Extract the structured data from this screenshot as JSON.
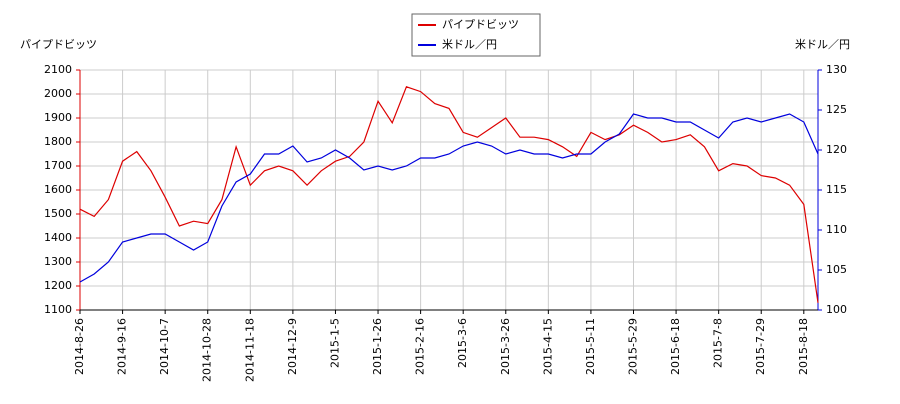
{
  "chart_data": {
    "type": "line",
    "y_label": "パイプドビッツ",
    "y2_label": "米ドル／円",
    "categories": [
      "2014-8-26",
      null,
      null,
      "2014-9-16",
      null,
      null,
      "2014-10-7",
      null,
      null,
      "2014-10-28",
      null,
      null,
      "2014-11-18",
      null,
      null,
      "2014-12-9",
      null,
      null,
      "2015-1-5",
      null,
      null,
      "2015-1-26",
      null,
      null,
      "2015-2-16",
      null,
      null,
      "2015-3-6",
      null,
      null,
      "2015-3-26",
      null,
      null,
      "2015-4-15",
      null,
      null,
      "2015-5-11",
      null,
      null,
      "2015-5-29",
      null,
      null,
      "2015-6-18",
      null,
      null,
      "2015-7-8",
      null,
      null,
      "2015-7-29",
      null,
      null,
      "2015-8-18",
      null
    ],
    "series": [
      {
        "name": "パイプドビッツ",
        "color": "#dd0000",
        "axis": "y",
        "values": [
          1520,
          1490,
          1560,
          1720,
          1760,
          1680,
          1570,
          1450,
          1470,
          1460,
          1560,
          1780,
          1620,
          1680,
          1700,
          1680,
          1620,
          1680,
          1720,
          1740,
          1800,
          1970,
          1880,
          2030,
          2010,
          1960,
          1940,
          1840,
          1820,
          1860,
          1900,
          1820,
          1820,
          1810,
          1780,
          1740,
          1840,
          1810,
          1830,
          1870,
          1840,
          1800,
          1810,
          1830,
          1780,
          1680,
          1710,
          1700,
          1660,
          1650,
          1620,
          1540,
          1130
        ]
      },
      {
        "name": "米ドル／円",
        "color": "#0000dd",
        "axis": "y2",
        "values": [
          103.5,
          104.5,
          106,
          108.5,
          109,
          109.5,
          109.5,
          108.5,
          107.5,
          108.5,
          113,
          116,
          117,
          119.5,
          119.5,
          120.5,
          118.5,
          119,
          120,
          119,
          117.5,
          118,
          117.5,
          118,
          119,
          119,
          119.5,
          120.5,
          121,
          120.5,
          119.5,
          120,
          119.5,
          119.5,
          119,
          119.5,
          119.5,
          121,
          122,
          124.5,
          124,
          124,
          123.5,
          123.5,
          122.5,
          121.5,
          123.5,
          124,
          123.5,
          124,
          124.5,
          123.5,
          119.5
        ]
      }
    ],
    "ylim": [
      1100,
      2100
    ],
    "yticks": [
      1100,
      1200,
      1300,
      1400,
      1500,
      1600,
      1700,
      1800,
      1900,
      2000,
      2100
    ],
    "y2lim": [
      100,
      130
    ],
    "y2ticks": [
      100,
      105,
      110,
      115,
      120,
      125,
      130
    ],
    "grid": true
  }
}
